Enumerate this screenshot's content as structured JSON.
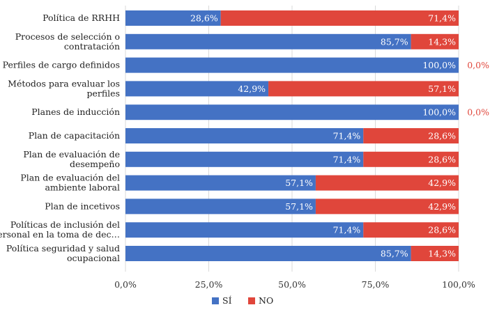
{
  "chart_data": {
    "type": "bar",
    "orientation": "horizontal",
    "stacked": true,
    "categories": [
      "Política de RRHH",
      "Procesos de selección o contratación",
      "Perfiles de cargo definidos",
      "Métodos para evaluar los perfiles",
      "Planes de inducción",
      "Plan de capacitación",
      "Plan de evaluación de desempeño",
      "Plan de evaluación del ambiente laboral",
      "Plan de incetivos",
      "Políticas de inclusión del personal en la toma de dec…",
      "Política seguridad y salud ocupacional"
    ],
    "category_lines": [
      [
        "Política de RRHH"
      ],
      [
        "Procesos de selección o",
        "contratación"
      ],
      [
        "Perfiles de cargo definidos"
      ],
      [
        "Métodos para evaluar los",
        "perfiles"
      ],
      [
        "Planes de inducción"
      ],
      [
        "Plan de capacitación"
      ],
      [
        "Plan de evaluación de",
        "desempeño"
      ],
      [
        "Plan de evaluación del",
        "ambiente laboral"
      ],
      [
        "Plan de incetivos"
      ],
      [
        "Políticas de inclusión del",
        "personal en la toma de dec…"
      ],
      [
        "Política seguridad y salud",
        "ocupacional"
      ]
    ],
    "series": [
      {
        "name": "SÍ",
        "color": "#4472c4",
        "values": [
          28.6,
          85.7,
          100.0,
          42.9,
          100.0,
          71.4,
          71.4,
          57.1,
          57.1,
          71.4,
          85.7
        ],
        "labels": [
          "28,6%",
          "85,7%",
          "100,0%",
          "42,9%",
          "100,0%",
          "71,4%",
          "71,4%",
          "57,1%",
          "57,1%",
          "71,4%",
          "85,7%"
        ]
      },
      {
        "name": "NO",
        "color": "#e0463b",
        "values": [
          71.4,
          14.3,
          0.0,
          57.1,
          0.0,
          28.6,
          28.6,
          42.9,
          42.9,
          28.6,
          14.3
        ],
        "labels": [
          "71,4%",
          "14,3%",
          "0,0%",
          "57,1%",
          "0,0%",
          "28,6%",
          "28,6%",
          "42,9%",
          "42,9%",
          "28,6%",
          "14,3%"
        ]
      }
    ],
    "xlim": [
      0,
      100
    ],
    "xticks": [
      0,
      25,
      50,
      75,
      100
    ],
    "xtick_labels": [
      "0,0%",
      "25,0%",
      "50,0%",
      "75,0%",
      "100,0%"
    ],
    "grid": true,
    "legend_position": "bottom",
    "title": "",
    "xlabel": "",
    "ylabel": ""
  }
}
